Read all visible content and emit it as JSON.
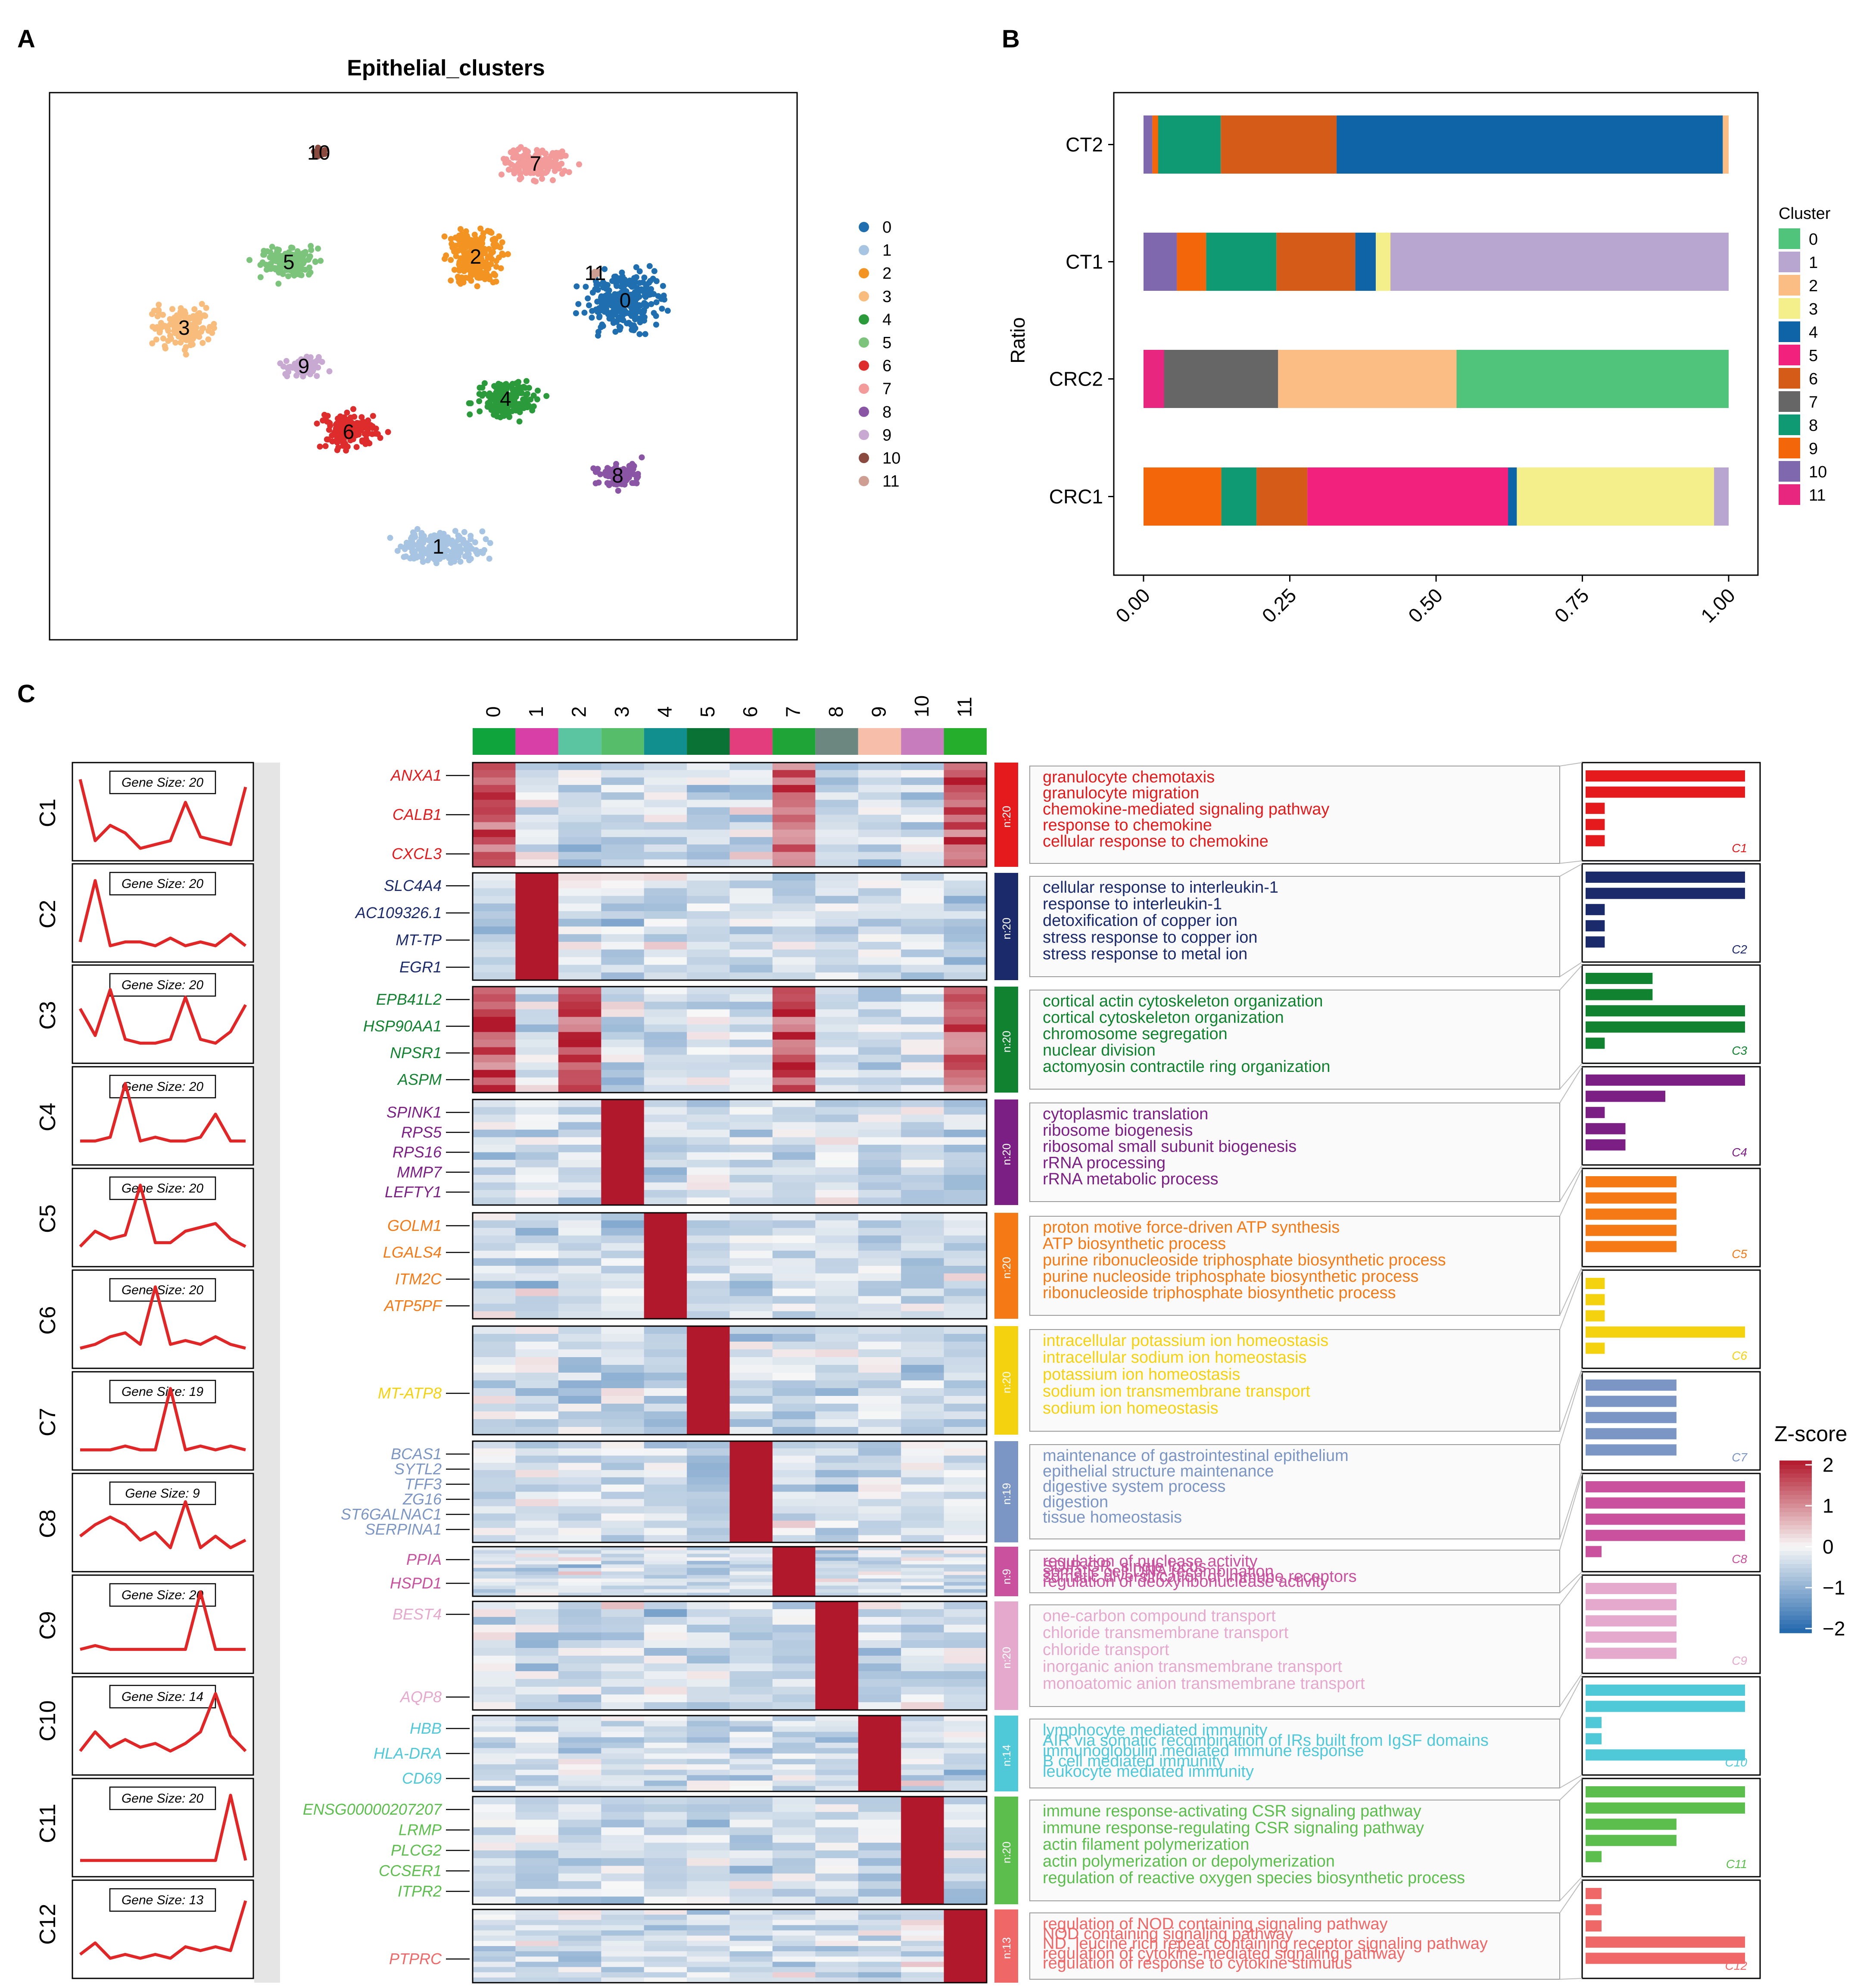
{
  "panel_labels": [
    "A",
    "B",
    "C"
  ],
  "colors": {
    "umap": [
      "#1f6fb0",
      "#a7c4e3",
      "#f39322",
      "#f8bd7d",
      "#2b9a3a",
      "#7cc47c",
      "#dd2c2b",
      "#f39a9a",
      "#8b55a5",
      "#c7a9d1",
      "#8b4a3f",
      "#cf9e93"
    ],
    "stack": [
      "#4fc47a",
      "#b8a6d0",
      "#fbbd84",
      "#f4ef8b",
      "#0f64a8",
      "#f2217e",
      "#d45b18",
      "#666666",
      "#0f9a74",
      "#f4660a",
      "#7f68ae",
      "#e8257f"
    ],
    "heat_strip": [
      "#0fa43c",
      "#d83fa7",
      "#5bc5a2",
      "#56bd6a",
      "#118f8f",
      "#0a7235",
      "#e33d7d",
      "#1ea437",
      "#6c8780",
      "#f7bfa9",
      "#c77dbd",
      "#25ad2c"
    ],
    "modules": [
      "#e41a1c",
      "#1b2a6b",
      "#11822f",
      "#7b1f84",
      "#f57a15",
      "#f5d20f",
      "#7b95c4",
      "#c9519e",
      "#e6a9ce",
      "#4fc8d8",
      "#5cbe4c",
      "#f06767"
    ]
  },
  "chart_data": [
    {
      "type": "scatter",
      "title": "Epithelial_clusters",
      "legend_items": [
        "0",
        "1",
        "2",
        "3",
        "4",
        "5",
        "6",
        "7",
        "8",
        "9",
        "10",
        "11"
      ],
      "clusters": [
        {
          "label": "0",
          "center": [
            0.77,
            0.38
          ],
          "spread": [
            0.09,
            0.09
          ]
        },
        {
          "label": "1",
          "center": [
            0.52,
            0.83
          ],
          "spread": [
            0.1,
            0.05
          ]
        },
        {
          "label": "2",
          "center": [
            0.57,
            0.3
          ],
          "spread": [
            0.06,
            0.1
          ]
        },
        {
          "label": "3",
          "center": [
            0.18,
            0.43
          ],
          "spread": [
            0.07,
            0.06
          ]
        },
        {
          "label": "4",
          "center": [
            0.61,
            0.56
          ],
          "spread": [
            0.07,
            0.06
          ]
        },
        {
          "label": "5",
          "center": [
            0.32,
            0.31
          ],
          "spread": [
            0.07,
            0.05
          ]
        },
        {
          "label": "6",
          "center": [
            0.4,
            0.62
          ],
          "spread": [
            0.07,
            0.06
          ]
        },
        {
          "label": "7",
          "center": [
            0.65,
            0.13
          ],
          "spread": [
            0.08,
            0.05
          ]
        },
        {
          "label": "8",
          "center": [
            0.76,
            0.7
          ],
          "spread": [
            0.05,
            0.04
          ]
        },
        {
          "label": "9",
          "center": [
            0.34,
            0.5
          ],
          "spread": [
            0.05,
            0.03
          ]
        },
        {
          "label": "10",
          "center": [
            0.36,
            0.11
          ],
          "spread": [
            0.01,
            0.015
          ]
        },
        {
          "label": "11",
          "center": [
            0.73,
            0.33
          ],
          "spread": [
            0.01,
            0.01
          ]
        }
      ]
    },
    {
      "type": "bar",
      "orientation": "horizontal-stacked",
      "ylabel": "Ratio",
      "legend_title": "Cluster",
      "legend_items": [
        "0",
        "1",
        "2",
        "3",
        "4",
        "5",
        "6",
        "7",
        "8",
        "9",
        "10",
        "11"
      ],
      "categories": [
        "CT2",
        "CT1",
        "CRC2",
        "CRC1"
      ],
      "x_ticks": [
        "0.00",
        "0.25",
        "0.50",
        "0.75",
        "1.00"
      ],
      "xlim": [
        0,
        1
      ],
      "stacks": [
        {
          "category": "CT2",
          "segments": [
            {
              "cluster": "10",
              "value": 0.015
            },
            {
              "cluster": "9",
              "value": 0.01
            },
            {
              "cluster": "8",
              "value": 0.107
            },
            {
              "cluster": "6",
              "value": 0.198
            },
            {
              "cluster": "4",
              "value": 0.66
            },
            {
              "cluster": "2",
              "value": 0.01
            }
          ]
        },
        {
          "category": "CT1",
          "segments": [
            {
              "cluster": "10",
              "value": 0.057
            },
            {
              "cluster": "9",
              "value": 0.05
            },
            {
              "cluster": "8",
              "value": 0.12
            },
            {
              "cluster": "6",
              "value": 0.135
            },
            {
              "cluster": "4",
              "value": 0.035
            },
            {
              "cluster": "3",
              "value": 0.025
            },
            {
              "cluster": "1",
              "value": 0.578
            }
          ]
        },
        {
          "category": "CRC2",
          "segments": [
            {
              "cluster": "11",
              "value": 0.035
            },
            {
              "cluster": "7",
              "value": 0.195
            },
            {
              "cluster": "2",
              "value": 0.305
            },
            {
              "cluster": "0",
              "value": 0.465
            }
          ]
        },
        {
          "category": "CRC1",
          "segments": [
            {
              "cluster": "9",
              "value": 0.133
            },
            {
              "cluster": "8",
              "value": 0.06
            },
            {
              "cluster": "6",
              "value": 0.087
            },
            {
              "cluster": "5",
              "value": 0.343
            },
            {
              "cluster": "4",
              "value": 0.015
            },
            {
              "cluster": "3",
              "value": 0.337
            },
            {
              "cluster": "1",
              "value": 0.025
            }
          ]
        }
      ]
    },
    {
      "type": "heatmap",
      "columns": [
        "0",
        "1",
        "2",
        "3",
        "4",
        "5",
        "6",
        "7",
        "8",
        "9",
        "10",
        "11"
      ],
      "colorbar": {
        "title": "Z-score",
        "ticks": [
          "2",
          "1",
          "0",
          "−1",
          "−2"
        ]
      },
      "modules": [
        {
          "name": "C1",
          "gene_size": "Gene Size: 20",
          "n": "n:20",
          "peaks": [
            0,
            7,
            11
          ],
          "profile": [
            0.95,
            0.15,
            0.35,
            0.25,
            0.05,
            0.1,
            0.15,
            0.65,
            0.2,
            0.15,
            0.1,
            0.85
          ],
          "genes": [
            "ANXA1",
            "CALB1",
            "CXCL3"
          ],
          "terms": [
            "granulocyte chemotaxis",
            "granulocyte migration",
            "chemokine-mediated signaling pathway",
            "response to chemokine",
            "cellular response to chemokine"
          ],
          "bars": [
            1.0,
            1.0,
            0.12,
            0.12,
            0.12
          ]
        },
        {
          "name": "C2",
          "gene_size": "Gene Size: 20",
          "n": "n:20",
          "peaks": [
            1
          ],
          "profile": [
            0.15,
            0.95,
            0.1,
            0.15,
            0.15,
            0.1,
            0.2,
            0.1,
            0.15,
            0.1,
            0.25,
            0.1
          ],
          "genes": [
            "SLC4A4",
            "AC109326.1",
            "MT-TP",
            "EGR1"
          ],
          "terms": [
            "cellular response to interleukin-1",
            "response to interleukin-1",
            "detoxification of copper ion",
            "stress response to copper ion",
            "stress response to metal ion"
          ],
          "bars": [
            1.0,
            1.0,
            0.12,
            0.12,
            0.12
          ]
        },
        {
          "name": "C3",
          "gene_size": "Gene Size: 20",
          "n": "n:20",
          "peaks": [
            0,
            2,
            7,
            11
          ],
          "profile": [
            0.6,
            0.25,
            0.85,
            0.2,
            0.15,
            0.15,
            0.2,
            0.75,
            0.2,
            0.15,
            0.3,
            0.65
          ],
          "genes": [
            "EPB41L2",
            "HSP90AA1",
            "NPSR1",
            "ASPM"
          ],
          "terms": [
            "cortical actin cytoskeleton organization",
            "cortical cytoskeleton organization",
            "chromosome segregation",
            "nuclear division",
            "actomyosin contractile ring organization"
          ],
          "bars": [
            0.42,
            0.42,
            1.0,
            1.0,
            0.12
          ]
        },
        {
          "name": "C4",
          "gene_size": "Gene Size: 20",
          "n": "n:20",
          "peaks": [
            3
          ],
          "profile": [
            0.2,
            0.2,
            0.25,
            0.95,
            0.2,
            0.25,
            0.2,
            0.2,
            0.25,
            0.55,
            0.2,
            0.2
          ],
          "genes": [
            "SPINK1",
            "RPS5",
            "RPS16",
            "MMP7",
            "LEFTY1"
          ],
          "terms": [
            "cytoplasmic translation",
            "ribosome biogenesis",
            "ribosomal small subunit biogenesis",
            "rRNA processing",
            "rRNA metabolic process"
          ],
          "bars": [
            1.0,
            0.5,
            0.12,
            0.25,
            0.25
          ]
        },
        {
          "name": "C5",
          "gene_size": "Gene Size: 20",
          "n": "n:20",
          "peaks": [
            4
          ],
          "profile": [
            0.15,
            0.35,
            0.25,
            0.3,
            0.95,
            0.2,
            0.2,
            0.35,
            0.4,
            0.45,
            0.25,
            0.15
          ],
          "genes": [
            "GOLM1",
            "LGALS4",
            "ITM2C",
            "ATP5PF"
          ],
          "terms": [
            "proton motive force-driven ATP synthesis",
            "ATP biosynthetic process",
            "purine ribonucleoside triphosphate biosynthetic process",
            "purine nucleoside triphosphate biosynthetic process",
            "ribonucleoside triphosphate biosynthetic process"
          ],
          "bars": [
            0.57,
            0.57,
            0.57,
            0.57,
            0.57
          ]
        },
        {
          "name": "C6",
          "gene_size": "Gene Size: 20",
          "n": "n:20",
          "peaks": [
            5
          ],
          "profile": [
            0.15,
            0.2,
            0.3,
            0.35,
            0.2,
            0.95,
            0.2,
            0.25,
            0.2,
            0.3,
            0.2,
            0.15
          ],
          "genes": [
            "MT-ATP8"
          ],
          "terms": [
            "intracellular potassium ion homeostasis",
            "intracellular sodium ion homeostasis",
            "potassium ion homeostasis",
            "sodium ion transmembrane transport",
            "sodium ion homeostasis"
          ],
          "bars": [
            0.12,
            0.12,
            0.12,
            1.0,
            0.12
          ]
        },
        {
          "name": "C7",
          "gene_size": "Gene Size: 19",
          "n": "n:19",
          "peaks": [
            6
          ],
          "profile": [
            0.15,
            0.15,
            0.15,
            0.2,
            0.15,
            0.15,
            0.95,
            0.15,
            0.2,
            0.15,
            0.2,
            0.15
          ],
          "genes": [
            "BCAS1",
            "SYTL2",
            "TFF3",
            "ZG16",
            "ST6GALNAC1",
            "SERPINA1"
          ],
          "terms": [
            "maintenance of gastrointestinal epithelium",
            "epithelial structure maintenance",
            "digestive system process",
            "digestion",
            "tissue homeostasis"
          ],
          "bars": [
            0.57,
            0.57,
            0.57,
            0.57,
            0.57
          ]
        },
        {
          "name": "C8",
          "gene_size": "Gene Size: 9",
          "n": "n:9",
          "peaks": [
            7
          ],
          "profile": [
            0.35,
            0.5,
            0.6,
            0.5,
            0.3,
            0.4,
            0.2,
            0.8,
            0.2,
            0.35,
            0.2,
            0.3
          ],
          "genes": [
            "PPIA",
            "HSPD1"
          ],
          "terms": [
            "regulation of nuclease activity",
            "SDIR-GR, single locus",
            "somatic cell DNA recombination",
            "somatic diversification of immune receptors",
            "regulation of deoxyribonuclease activity"
          ],
          "bars": [
            1.0,
            1.0,
            1.0,
            1.0,
            0.1
          ]
        },
        {
          "name": "C9",
          "gene_size": "Gene Size: 20",
          "n": "n:20",
          "peaks": [
            8
          ],
          "profile": [
            0.2,
            0.25,
            0.2,
            0.2,
            0.2,
            0.2,
            0.2,
            0.2,
            0.95,
            0.2,
            0.2,
            0.2
          ],
          "genes": [
            "BEST4",
            "AQP8"
          ],
          "terms": [
            "one-carbon compound transport",
            "chloride transmembrane transport",
            "chloride transport",
            "inorganic anion transmembrane transport",
            "monoatomic anion transmembrane transport"
          ],
          "bars": [
            0.57,
            0.57,
            0.57,
            0.57,
            0.57
          ]
        },
        {
          "name": "C10",
          "gene_size": "Gene Size: 14",
          "n": "n:14",
          "peaks": [
            9
          ],
          "profile": [
            0.2,
            0.45,
            0.25,
            0.35,
            0.25,
            0.3,
            0.2,
            0.3,
            0.45,
            0.95,
            0.4,
            0.2
          ],
          "genes": [
            "HBB",
            "HLA-DRA",
            "CD69"
          ],
          "terms": [
            "lymphocyte mediated immunity",
            "AIR via somatic recombination of IRs built from IgSF domains",
            "immunoglobulin mediated immune response",
            "B cell mediated immunity",
            "leukocyte mediated immunity"
          ],
          "bars": [
            1.0,
            1.0,
            0.1,
            0.1,
            1.0
          ]
        },
        {
          "name": "C11",
          "gene_size": "Gene Size: 20",
          "n": "n:20",
          "peaks": [
            10
          ],
          "profile": [
            0.1,
            0.1,
            0.1,
            0.1,
            0.1,
            0.1,
            0.1,
            0.1,
            0.1,
            0.1,
            0.95,
            0.1
          ],
          "genes": [
            "ENSG00000207207",
            "LRMP",
            "PLCG2",
            "CCSER1",
            "ITPR2"
          ],
          "terms": [
            "immune response-activating CSR signaling pathway",
            "immune response-regulating CSR signaling pathway",
            "actin filament polymerization",
            "actin polymerization or depolymerization",
            "regulation of reactive oxygen species biosynthetic process"
          ],
          "bars": [
            1.0,
            1.0,
            0.57,
            0.57,
            0.1
          ]
        },
        {
          "name": "C12",
          "gene_size": "Gene Size: 13",
          "n": "n:13",
          "peaks": [
            11
          ],
          "profile": [
            0.2,
            0.35,
            0.15,
            0.2,
            0.15,
            0.2,
            0.15,
            0.3,
            0.25,
            0.3,
            0.25,
            0.9
          ],
          "genes": [
            "PTPRC"
          ],
          "terms": [
            "regulation of NOD containing signaling pathway",
            "NOD containing signaling pathway",
            "ND, leucine rich repeat containing receptor signaling pathway",
            "regulation of cytokine-mediated signaling pathway",
            "regulation of response to cytokine stimulus"
          ],
          "bars": [
            0.1,
            0.1,
            0.1,
            1.0,
            1.0
          ]
        }
      ]
    }
  ]
}
